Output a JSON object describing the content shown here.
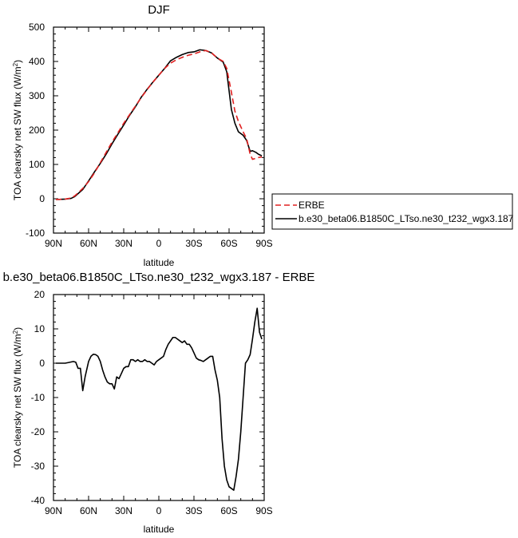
{
  "chart_data": [
    {
      "type": "line",
      "title": "DJF",
      "xlabel": "latitude",
      "ylabel": "TOA clearsky net SW flux (W/m",
      "ylabel_sup": "2",
      "ylabel_end": ")",
      "xlim": [
        90,
        -90
      ],
      "ylim": [
        -100,
        500
      ],
      "xticks": [
        90,
        60,
        30,
        0,
        -30,
        -60,
        -90
      ],
      "xtick_labels": [
        "90N",
        "60N",
        "30N",
        "0",
        "30S",
        "60S",
        "90S"
      ],
      "yticks": [
        -100,
        0,
        100,
        200,
        300,
        400,
        500
      ],
      "ytick_labels": [
        "-100",
        "0",
        "100",
        "200",
        "300",
        "400",
        "500"
      ],
      "grid": false,
      "legend_position": "right-bottom-outside",
      "series": [
        {
          "name": "ERBE",
          "color": "#e02020",
          "dash": "dashed",
          "x": [
            88,
            85,
            80,
            75,
            72,
            70,
            65,
            60,
            55,
            50,
            45,
            40,
            35,
            30,
            25,
            20,
            15,
            10,
            5,
            0,
            -5,
            -10,
            -15,
            -20,
            -25,
            -30,
            -35,
            -40,
            -45,
            -50,
            -55,
            -58,
            -62,
            -65,
            -68,
            -72,
            -75,
            -78,
            -80,
            -83,
            -85,
            -88
          ],
          "y": [
            -2,
            -2,
            -1,
            2,
            8,
            14,
            30,
            50,
            75,
            105,
            135,
            165,
            192,
            220,
            245,
            270,
            295,
            318,
            340,
            360,
            380,
            395,
            405,
            412,
            418,
            422,
            428,
            432,
            425,
            410,
            400,
            380,
            310,
            255,
            225,
            195,
            175,
            130,
            115,
            118,
            120,
            122
          ]
        },
        {
          "name": "b.e30_beta06.B1850C_LTso.ne30_t232_wgx3.187",
          "color": "#000000",
          "dash": "solid",
          "x": [
            88,
            85,
            80,
            75,
            72,
            70,
            65,
            60,
            55,
            50,
            45,
            40,
            35,
            30,
            25,
            20,
            15,
            10,
            5,
            0,
            -5,
            -10,
            -15,
            -20,
            -25,
            -30,
            -35,
            -40,
            -45,
            -50,
            -55,
            -58,
            -62,
            -65,
            -68,
            -72,
            -75,
            -78,
            -80,
            -83,
            -85,
            -88
          ],
          "y": [
            -2,
            -2,
            -1,
            1,
            6,
            12,
            27,
            52,
            78,
            103,
            130,
            160,
            188,
            215,
            243,
            268,
            296,
            319,
            340,
            360,
            380,
            402,
            412,
            420,
            426,
            428,
            434,
            432,
            425,
            410,
            398,
            370,
            260,
            220,
            195,
            185,
            170,
            138,
            140,
            135,
            130,
            125
          ]
        }
      ]
    },
    {
      "type": "line",
      "title": "b.e30_beta06.B1850C_LTso.ne30_t232_wgx3.187 - ERBE",
      "xlabel": "latitude",
      "ylabel": "TOA clearsky net SW flux (W/m",
      "ylabel_sup": "2",
      "ylabel_end": ")",
      "xlim": [
        90,
        -90
      ],
      "ylim": [
        -40,
        20
      ],
      "xticks": [
        90,
        60,
        30,
        0,
        -30,
        -60,
        -90
      ],
      "xtick_labels": [
        "90N",
        "60N",
        "30N",
        "0",
        "30S",
        "60S",
        "90S"
      ],
      "yticks": [
        -40,
        -30,
        -20,
        -10,
        0,
        10,
        20
      ],
      "ytick_labels": [
        "-40",
        "-30",
        "-20",
        "-10",
        "0",
        "10",
        "20"
      ],
      "grid": false,
      "series": [
        {
          "color": "#000000",
          "dash": "solid",
          "x": [
            88,
            85,
            82,
            80,
            77,
            73,
            71,
            69,
            67,
            65,
            63,
            60,
            58,
            56,
            54,
            52,
            50,
            48,
            46,
            44,
            42,
            40,
            38,
            36,
            34,
            32,
            30,
            28,
            26,
            24,
            22,
            20,
            18,
            16,
            14,
            12,
            10,
            8,
            6,
            4,
            2,
            0,
            -2,
            -4,
            -6,
            -8,
            -10,
            -12,
            -14,
            -16,
            -18,
            -20,
            -22,
            -24,
            -26,
            -28,
            -30,
            -32,
            -34,
            -36,
            -38,
            -40,
            -42,
            -44,
            -46,
            -48,
            -50,
            -52,
            -54,
            -56,
            -58,
            -60,
            -62,
            -64,
            -66,
            -68,
            -70,
            -72,
            -74,
            -76,
            -78,
            -80,
            -82,
            -84,
            -86,
            -88
          ],
          "y": [
            0,
            0,
            0,
            0,
            0.2,
            0.5,
            0.3,
            -1.5,
            -1.5,
            -8,
            -4,
            0.5,
            2.0,
            2.6,
            2.5,
            2.0,
            0.5,
            -2.0,
            -4.0,
            -5.5,
            -6.0,
            -6.0,
            -7.5,
            -4.0,
            -4.5,
            -3.0,
            -1.5,
            -1.0,
            -1.0,
            1.0,
            1.0,
            0.5,
            1.0,
            0.5,
            0.5,
            1.0,
            0.5,
            0.5,
            0,
            -0.5,
            0.5,
            1.0,
            1.5,
            2.0,
            4.0,
            5.5,
            6.5,
            7.5,
            7.5,
            7.0,
            6.5,
            6.0,
            6.5,
            5.5,
            5.5,
            4.5,
            3.0,
            1.5,
            1.0,
            0.8,
            0.5,
            1.0,
            1.5,
            2.0,
            2.0,
            -2.0,
            -5.0,
            -10.0,
            -22.0,
            -30.0,
            -34.0,
            -36.0,
            -36.5,
            -37.0,
            -33.0,
            -28.0,
            -20.0,
            -10.0,
            0.0,
            1.0,
            2.5,
            7.0,
            12.0,
            16.0,
            9.0,
            7.0
          ]
        }
      ]
    }
  ]
}
